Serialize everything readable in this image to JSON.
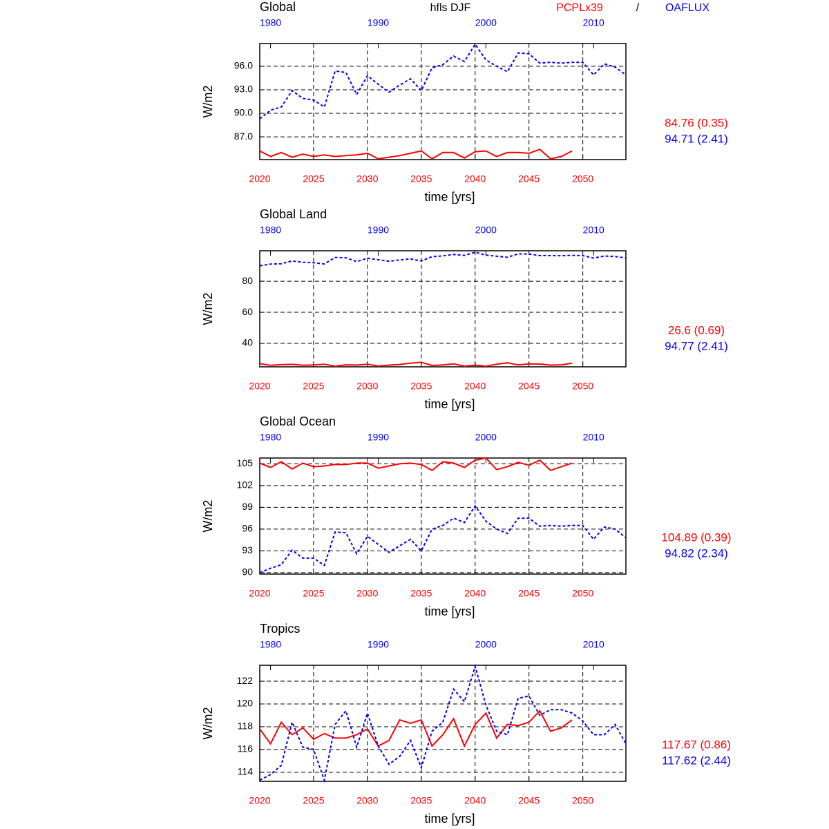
{
  "header": {
    "title": "hfls DJF",
    "separator": "/"
  },
  "chart_data": [
    {
      "type": "line",
      "title": "Global",
      "xlabel": "time [yrs]",
      "ylabel": "W/m2",
      "grid": true,
      "xlim": [
        2020,
        2054
      ],
      "xticks": [
        2020,
        2025,
        2030,
        2035,
        2040,
        2045,
        2050
      ],
      "x2lim": [
        1979,
        2013
      ],
      "x2ticks": [
        1980,
        1990,
        2000,
        2010
      ],
      "ylim": [
        84.1,
        98.9
      ],
      "yticks": [
        {
          "value": 87,
          "label": "87.0"
        },
        {
          "value": 90,
          "label": "90.0"
        },
        {
          "value": 93,
          "label": "93.0"
        },
        {
          "value": 96,
          "label": "96.0"
        }
      ],
      "series": [
        {
          "name": "PCPLx39",
          "color": "#ff0000",
          "summary": "84.76 (0.35)",
          "x": [
            2020,
            2021,
            2022,
            2023,
            2024,
            2025,
            2026,
            2027,
            2028,
            2029,
            2030,
            2031,
            2032,
            2033,
            2034,
            2035,
            2036,
            2037,
            2038,
            2039,
            2040,
            2041,
            2042,
            2043,
            2044,
            2045,
            2046,
            2047,
            2048,
            2049
          ],
          "values": [
            85.2,
            84.5,
            85.0,
            84.4,
            84.8,
            84.5,
            84.7,
            84.5,
            84.6,
            84.7,
            84.9,
            84.2,
            84.4,
            84.6,
            84.9,
            85.2,
            84.2,
            85.0,
            85.0,
            84.3,
            85.1,
            85.2,
            84.5,
            85.0,
            85.0,
            84.9,
            85.4,
            84.2,
            84.5,
            85.2
          ]
        },
        {
          "name": "OAFLUX",
          "color": "#0000ff",
          "summary": "94.71 (2.41)",
          "axis": "x2",
          "dashed": true,
          "x": [
            1979,
            1980,
            1981,
            1982,
            1983,
            1984,
            1985,
            1986,
            1987,
            1988,
            1989,
            1990,
            1991,
            1992,
            1993,
            1994,
            1995,
            1996,
            1997,
            1998,
            1999,
            2000,
            2001,
            2002,
            2003,
            2004,
            2005,
            2006,
            2007,
            2008,
            2009,
            2010,
            2011,
            2012,
            2013
          ],
          "values": [
            89.3,
            90.4,
            90.8,
            92.9,
            91.9,
            91.7,
            90.8,
            95.4,
            95.2,
            92.4,
            94.8,
            93.7,
            92.7,
            93.6,
            94.4,
            92.9,
            95.8,
            96.2,
            97.3,
            96.6,
            98.8,
            96.8,
            96.0,
            95.3,
            97.7,
            97.6,
            96.4,
            96.5,
            96.4,
            96.5,
            96.5,
            94.9,
            96.3,
            95.9,
            94.9
          ]
        }
      ]
    },
    {
      "type": "line",
      "title": "Global Land",
      "xlabel": "time [yrs]",
      "ylabel": "W/m2",
      "grid": true,
      "xlim": [
        2020,
        2054
      ],
      "xticks": [
        2020,
        2025,
        2030,
        2035,
        2040,
        2045,
        2050
      ],
      "x2lim": [
        1979,
        2013
      ],
      "x2ticks": [
        1980,
        1990,
        2000,
        2010
      ],
      "ylim": [
        24.9,
        99.6
      ],
      "yticks": [
        40,
        60,
        80
      ],
      "series": [
        {
          "name": "PCPLx39",
          "color": "#ff0000",
          "summary": "26.6 (0.69)",
          "x": [
            2020,
            2021,
            2022,
            2023,
            2024,
            2025,
            2026,
            2027,
            2028,
            2029,
            2030,
            2031,
            2032,
            2033,
            2034,
            2035,
            2036,
            2037,
            2038,
            2039,
            2040,
            2041,
            2042,
            2043,
            2044,
            2045,
            2046,
            2047,
            2048,
            2049
          ],
          "values": [
            27.0,
            25.9,
            26.3,
            26.5,
            25.9,
            26.1,
            26.6,
            25.3,
            26.2,
            26.0,
            26.6,
            25.4,
            26.0,
            26.4,
            27.3,
            27.8,
            25.8,
            26.1,
            26.8,
            25.3,
            26.0,
            25.3,
            26.6,
            27.5,
            26.1,
            26.8,
            26.7,
            26.0,
            26.2,
            27.2
          ]
        },
        {
          "name": "OAFLUX",
          "color": "#0000ff",
          "summary": "94.77 (2.41)",
          "axis": "x2",
          "dashed": true,
          "x": [
            1979,
            1980,
            1981,
            1982,
            1983,
            1984,
            1985,
            1986,
            1987,
            1988,
            1989,
            1990,
            1991,
            1992,
            1993,
            1994,
            1995,
            1996,
            1997,
            1998,
            1999,
            2000,
            2001,
            2002,
            2003,
            2004,
            2005,
            2006,
            2007,
            2008,
            2009,
            2010,
            2011,
            2012,
            2013
          ],
          "values": [
            90.0,
            91.0,
            91.3,
            93.0,
            92.2,
            91.9,
            91.1,
            95.3,
            95.1,
            92.6,
            94.8,
            93.8,
            92.9,
            93.7,
            94.4,
            93.0,
            95.8,
            96.3,
            97.2,
            96.6,
            98.6,
            96.8,
            96.1,
            95.4,
            97.6,
            97.5,
            96.5,
            96.5,
            96.4,
            96.6,
            96.5,
            94.9,
            96.2,
            95.9,
            95.0
          ]
        }
      ]
    },
    {
      "type": "line",
      "title": "Global Ocean",
      "xlabel": "time [yrs]",
      "ylabel": "W/m2",
      "grid": true,
      "xlim": [
        2020,
        2054
      ],
      "xticks": [
        2020,
        2025,
        2030,
        2035,
        2040,
        2045,
        2050
      ],
      "x2lim": [
        1979,
        2013
      ],
      "x2ticks": [
        1980,
        1990,
        2000,
        2010
      ],
      "ylim": [
        89.8,
        105.8
      ],
      "yticks": [
        90,
        93,
        96,
        99,
        102,
        105
      ],
      "series": [
        {
          "name": "PCPLx39",
          "color": "#ff0000",
          "summary": "104.89 (0.39)",
          "x": [
            2020,
            2021,
            2022,
            2023,
            2024,
            2025,
            2026,
            2027,
            2028,
            2029,
            2030,
            2031,
            2032,
            2033,
            2034,
            2035,
            2036,
            2037,
            2038,
            2039,
            2040,
            2041,
            2042,
            2043,
            2044,
            2045,
            2046,
            2047,
            2048,
            2049
          ],
          "values": [
            105.1,
            104.5,
            105.3,
            104.3,
            105.1,
            104.6,
            104.7,
            104.9,
            104.9,
            105.1,
            105.1,
            104.4,
            104.7,
            105.0,
            105.1,
            104.9,
            104.1,
            105.3,
            105.1,
            104.5,
            105.5,
            105.8,
            104.2,
            104.6,
            105.2,
            104.8,
            105.5,
            104.1,
            104.6,
            105.1
          ]
        },
        {
          "name": "OAFLUX",
          "color": "#0000ff",
          "summary": "94.82 (2.34)",
          "axis": "x2",
          "dashed": true,
          "x": [
            1979,
            1980,
            1981,
            1982,
            1983,
            1984,
            1985,
            1986,
            1987,
            1988,
            1989,
            1990,
            1991,
            1992,
            1993,
            1994,
            1995,
            1996,
            1997,
            1998,
            1999,
            2000,
            2001,
            2002,
            2003,
            2004,
            2005,
            2006,
            2007,
            2008,
            2009,
            2010,
            2011,
            2012,
            2013
          ],
          "values": [
            90.0,
            90.6,
            91.1,
            93.1,
            92.0,
            92.0,
            91.0,
            95.6,
            95.5,
            92.6,
            95.0,
            93.9,
            92.8,
            93.7,
            94.6,
            93.0,
            96.0,
            96.5,
            97.5,
            96.9,
            99.2,
            97.1,
            96.0,
            95.4,
            97.5,
            97.5,
            96.4,
            96.5,
            96.4,
            96.5,
            96.5,
            94.6,
            96.3,
            96.0,
            94.8
          ]
        }
      ]
    },
    {
      "type": "line",
      "title": "Tropics",
      "xlabel": "time [yrs]",
      "ylabel": "W/m2",
      "grid": true,
      "xlim": [
        2020,
        2054
      ],
      "xticks": [
        2020,
        2025,
        2030,
        2035,
        2040,
        2045,
        2050
      ],
      "x2lim": [
        1979,
        2013
      ],
      "x2ticks": [
        1980,
        1990,
        2000,
        2010
      ],
      "ylim": [
        113.2,
        123.4
      ],
      "yticks": [
        114,
        116,
        118,
        120,
        122
      ],
      "series": [
        {
          "name": "PCPLx39",
          "color": "#ff0000",
          "summary": "117.67 (0.86)",
          "x": [
            2020,
            2021,
            2022,
            2023,
            2024,
            2025,
            2026,
            2027,
            2028,
            2029,
            2030,
            2031,
            2032,
            2033,
            2034,
            2035,
            2036,
            2037,
            2038,
            2039,
            2040,
            2041,
            2042,
            2043,
            2044,
            2045,
            2046,
            2047,
            2048,
            2049
          ],
          "values": [
            117.8,
            116.5,
            118.4,
            117.3,
            117.9,
            116.9,
            117.4,
            117.0,
            117.0,
            117.3,
            117.8,
            116.3,
            116.8,
            118.6,
            118.3,
            118.6,
            116.3,
            117.3,
            118.7,
            116.3,
            118.2,
            119.2,
            117.0,
            118.2,
            118.1,
            118.4,
            119.4,
            117.6,
            117.9,
            118.6
          ]
        },
        {
          "name": "OAFLUX",
          "color": "#0000ff",
          "summary": "117.62 (2.44)",
          "axis": "x2",
          "dashed": true,
          "x": [
            1979,
            1980,
            1981,
            1982,
            1983,
            1984,
            1985,
            1986,
            1987,
            1988,
            1989,
            1990,
            1991,
            1992,
            1993,
            1994,
            1995,
            1996,
            1997,
            1998,
            1999,
            2000,
            2001,
            2002,
            2003,
            2004,
            2005,
            2006,
            2007,
            2008,
            2009,
            2010,
            2011,
            2012,
            2013
          ],
          "values": [
            113.3,
            113.8,
            114.6,
            118.4,
            116.2,
            116.0,
            113.3,
            118.2,
            119.4,
            116.2,
            119.2,
            116.3,
            114.7,
            115.4,
            116.8,
            114.4,
            117.6,
            118.4,
            121.3,
            120.2,
            123.3,
            119.9,
            117.6,
            117.3,
            120.5,
            120.7,
            119.0,
            119.5,
            119.5,
            119.2,
            118.5,
            117.3,
            117.3,
            118.2,
            116.5
          ]
        }
      ]
    }
  ]
}
